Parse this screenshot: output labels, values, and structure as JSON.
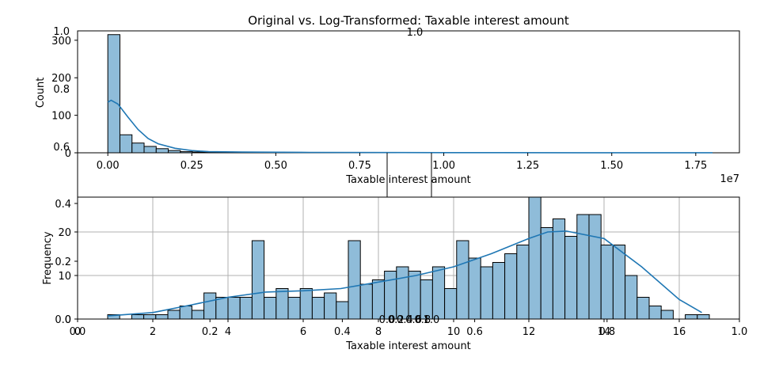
{
  "figure": {
    "title": "Original vs. Log-Transformed: Taxable interest amount"
  },
  "colors": {
    "bar_fill": "#8fbcd9",
    "bar_edge": "#000000",
    "kde": "#1f77b4",
    "grid": "#b0b0b0"
  },
  "chart_data": [
    {
      "type": "bar",
      "subtype": "histogram",
      "title": "",
      "xlabel": "Taxable interest amount",
      "ylabel": "Count",
      "x_offset_label": "1e7",
      "xlim": [
        -0.09,
        1.88
      ],
      "ylim": [
        0,
        325
      ],
      "xticks": [
        "0.00",
        "0.25",
        "0.50",
        "0.75",
        "1.00",
        "1.25",
        "1.50",
        "1.75"
      ],
      "yticks": [
        "0",
        "100",
        "200",
        "300"
      ],
      "bin_start": 0.0,
      "bin_width": 0.036,
      "counts": [
        315,
        48,
        26,
        17,
        11,
        6,
        3,
        2,
        1,
        1,
        1,
        1,
        1
      ],
      "kde": {
        "x": [
          0,
          0.01,
          0.03,
          0.06,
          0.09,
          0.12,
          0.15,
          0.2,
          0.25,
          0.3,
          0.4,
          0.6,
          1.0,
          1.4,
          1.8
        ],
        "y": [
          135,
          140,
          130,
          95,
          62,
          38,
          24,
          12,
          6,
          3,
          2,
          1,
          0.5,
          0.3,
          0.2
        ]
      },
      "grid": false
    },
    {
      "type": "bar",
      "subtype": "histogram",
      "title": "",
      "xlabel": "Taxable interest amount",
      "ylabel": "Frequency",
      "xlim": [
        0,
        17.6
      ],
      "ylim": [
        0,
        28
      ],
      "xticks": [
        "0",
        "2",
        "4",
        "6",
        "8",
        "10",
        "12",
        "14",
        "16"
      ],
      "yticks": [
        "0",
        "10",
        "20"
      ],
      "bin_start": 0.8,
      "bin_width": 0.32,
      "counts": [
        1,
        0,
        1,
        1,
        1,
        2,
        3,
        2,
        6,
        5,
        5,
        5,
        18,
        5,
        7,
        5,
        7,
        5,
        6,
        4,
        18,
        8,
        9,
        11,
        12,
        11,
        9,
        12,
        7,
        18,
        14,
        12,
        13,
        15,
        17,
        28,
        21,
        23,
        19,
        24,
        24,
        17,
        17,
        10,
        5,
        3,
        2,
        0,
        1,
        1
      ],
      "kde": {
        "x": [
          0.8,
          2,
          3,
          4,
          5,
          6,
          7,
          8,
          9,
          10,
          11,
          12,
          12.5,
          13,
          14,
          15,
          16,
          16.6
        ],
        "y": [
          0.7,
          1.5,
          3.2,
          5.0,
          6.2,
          6.5,
          7.0,
          8.5,
          10.0,
          12.0,
          15.0,
          18.5,
          20.0,
          20.2,
          18.5,
          12.0,
          4.5,
          1.5
        ]
      },
      "grid": true
    }
  ],
  "overlay_axes": [
    {
      "yticks": [
        "0.6",
        "0.8",
        "1.0"
      ],
      "xtick_top": "1.0"
    },
    {
      "yticks": [
        "0.0",
        "0.2",
        "0.4"
      ],
      "xticks": [
        "0.0",
        "0.2",
        "0.4",
        "0.6",
        "0.8",
        "1.0"
      ]
    },
    {
      "xticks": [
        "0.0",
        "0.2",
        "0.4",
        "0.6",
        "0.8",
        "1.0"
      ]
    }
  ]
}
